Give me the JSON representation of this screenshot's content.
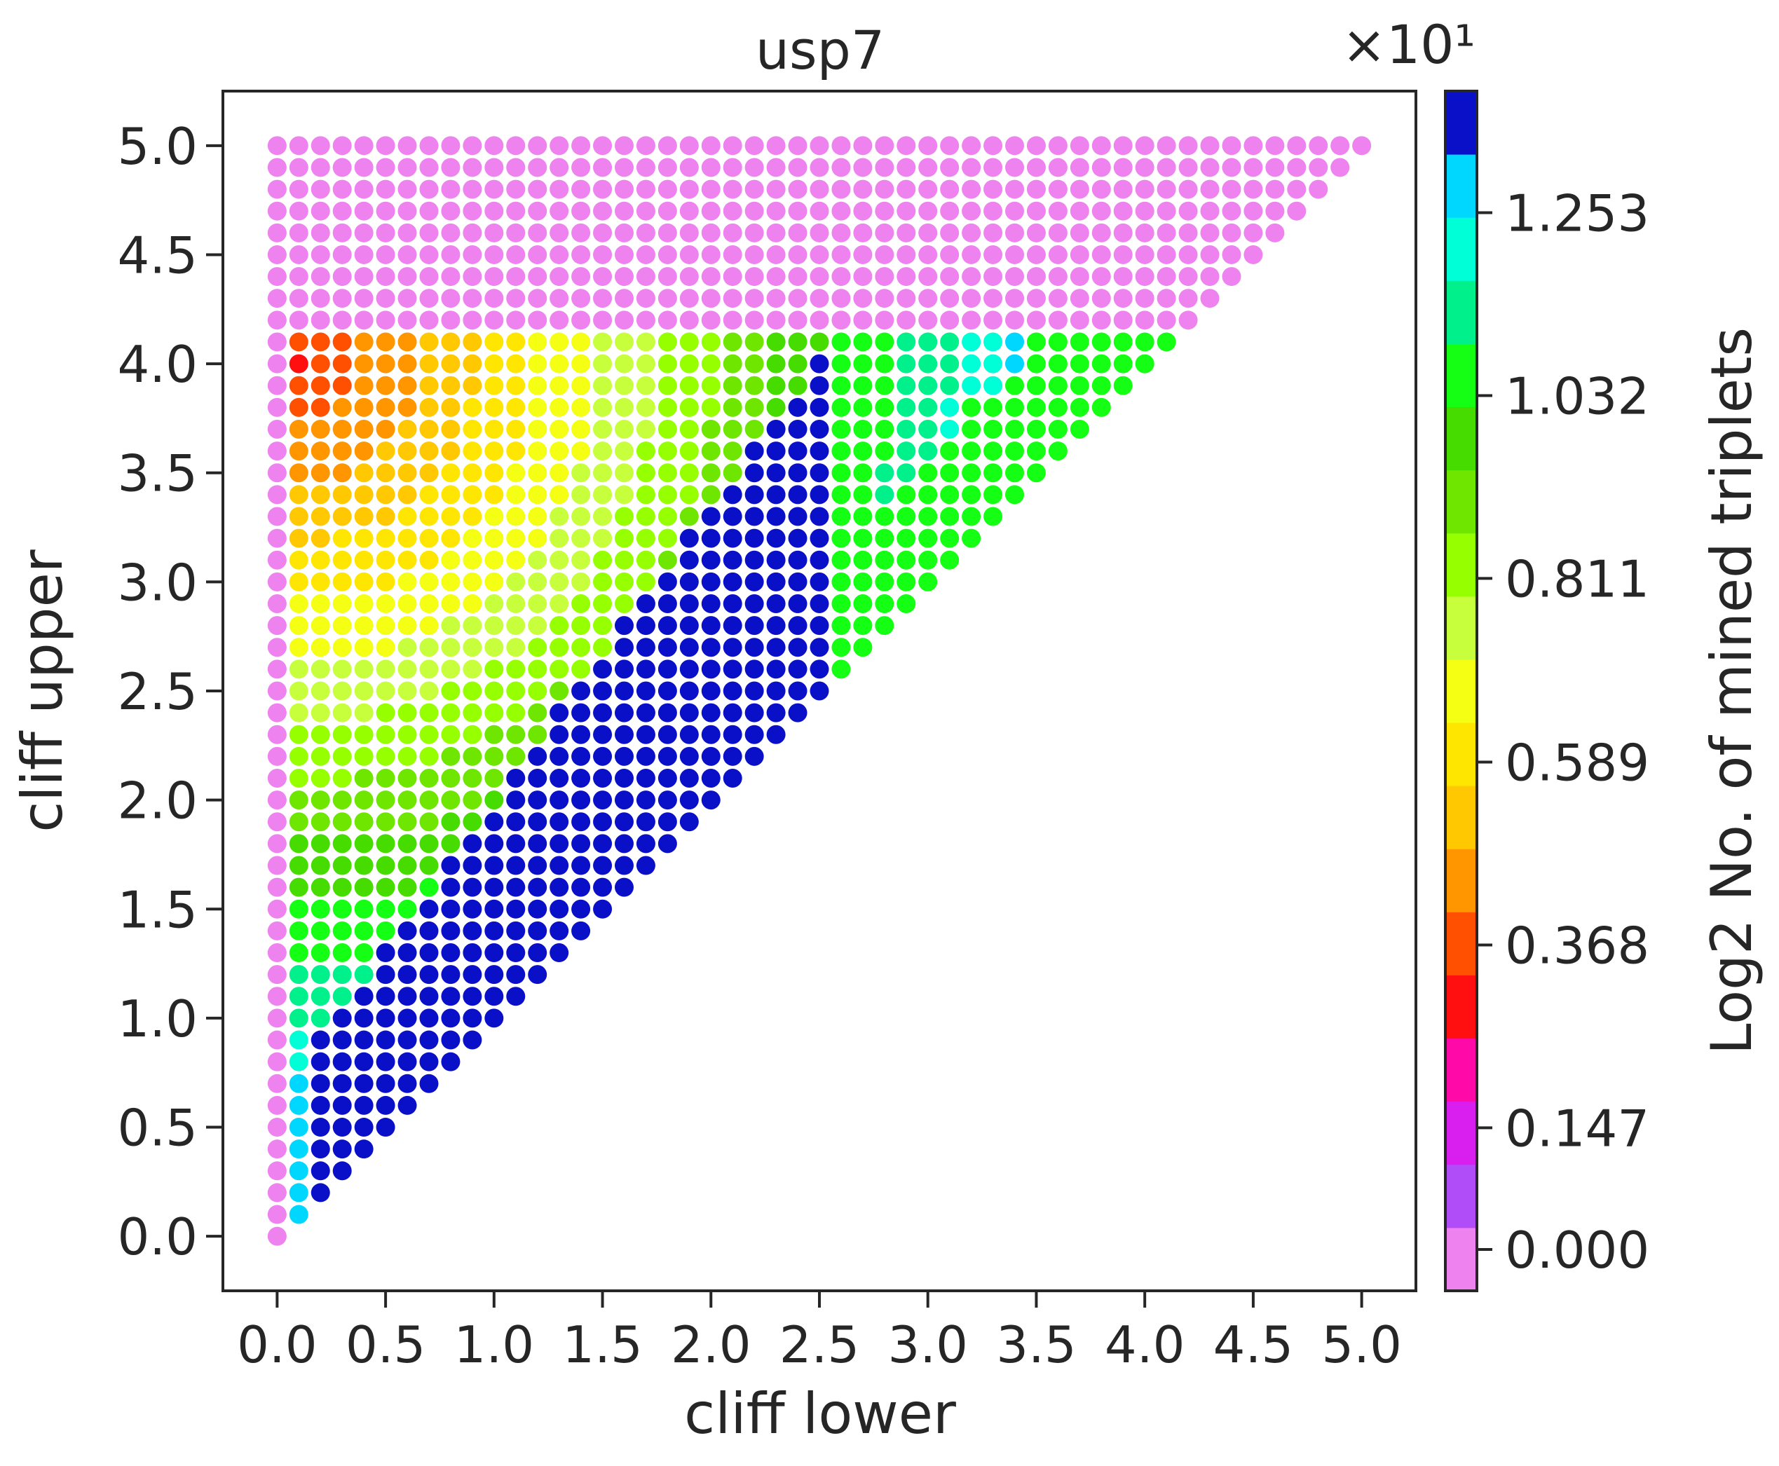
{
  "chart_data": {
    "type": "scatter",
    "title": "usp7",
    "xlabel": "cliff lower",
    "ylabel": "cliff upper",
    "xlim": [
      -0.25,
      5.25
    ],
    "ylim": [
      -0.25,
      5.25
    ],
    "grid": false,
    "x_ticks": [
      "0.0",
      "0.5",
      "1.0",
      "1.5",
      "2.0",
      "2.5",
      "3.0",
      "3.5",
      "4.0",
      "4.5",
      "5.0"
    ],
    "y_ticks": [
      "0.0",
      "0.5",
      "1.0",
      "1.5",
      "2.0",
      "2.5",
      "3.0",
      "3.5",
      "4.0",
      "4.5",
      "5.0"
    ],
    "grid_step": 0.1,
    "point_rule": "one point per (cliff lower, cliff upper) pair with cliff upper >= cliff lower, 0.0 to 5.0 in steps of 0.1",
    "colorbar": {
      "label": "Log2 No. of mined triplets",
      "offset_text": "×10¹",
      "range": [
        -0.05,
        1.4
      ],
      "ticks": [
        "0.000",
        "0.147",
        "0.368",
        "0.589",
        "0.811",
        "1.032",
        "1.253"
      ],
      "colors": [
        "#ee82ee",
        "#b04cf8",
        "#d91ef0",
        "#ff0aa8",
        "#ff0f0f",
        "#ff4f00",
        "#ff9600",
        "#ffc800",
        "#ffe600",
        "#f5ff14",
        "#c8ff3c",
        "#96ff00",
        "#6ee600",
        "#46dc00",
        "#14ff14",
        "#00f08c",
        "#00ffd7",
        "#00d7ff",
        "#0a10c8"
      ]
    },
    "approx_value_rule": "upper > 4.1 -> 0.000; 4.1 >= upper >= 0.1 and lower = 0.0 -> 0.000; otherwise log2 count decreases from ~0.37 near (0.1, 4.0) to ~1.38 near the diagonal lower <= 2.5"
  }
}
